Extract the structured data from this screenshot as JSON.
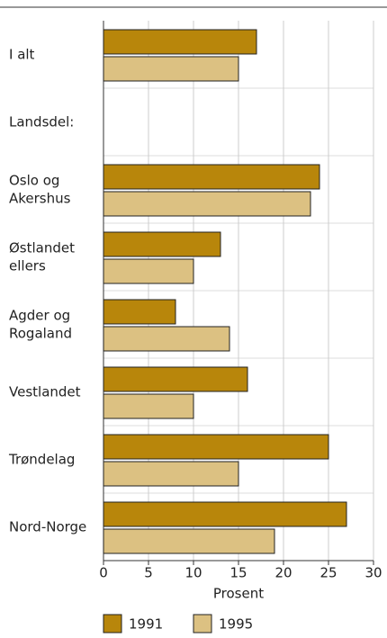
{
  "chart_data": {
    "type": "bar",
    "orientation": "horizontal",
    "categories": [
      "I alt",
      "Landsdel:",
      "Oslo og\nAkershus",
      "Østlandet\nellers",
      "Agder og\nRogaland",
      "Vestlandet",
      "Trøndelag",
      "Nord-Norge"
    ],
    "series": [
      {
        "name": "1991",
        "color": "#b8860b",
        "values": [
          17,
          null,
          24,
          13,
          8,
          16,
          25,
          27
        ]
      },
      {
        "name": "1995",
        "color": "#dcc182",
        "values": [
          15,
          null,
          23,
          10,
          14,
          10,
          15,
          19
        ]
      }
    ],
    "xlabel": "Prosent",
    "xlim": [
      0,
      30
    ],
    "xticks": [
      0,
      5,
      10,
      15,
      20,
      25,
      30
    ],
    "grid": true
  }
}
